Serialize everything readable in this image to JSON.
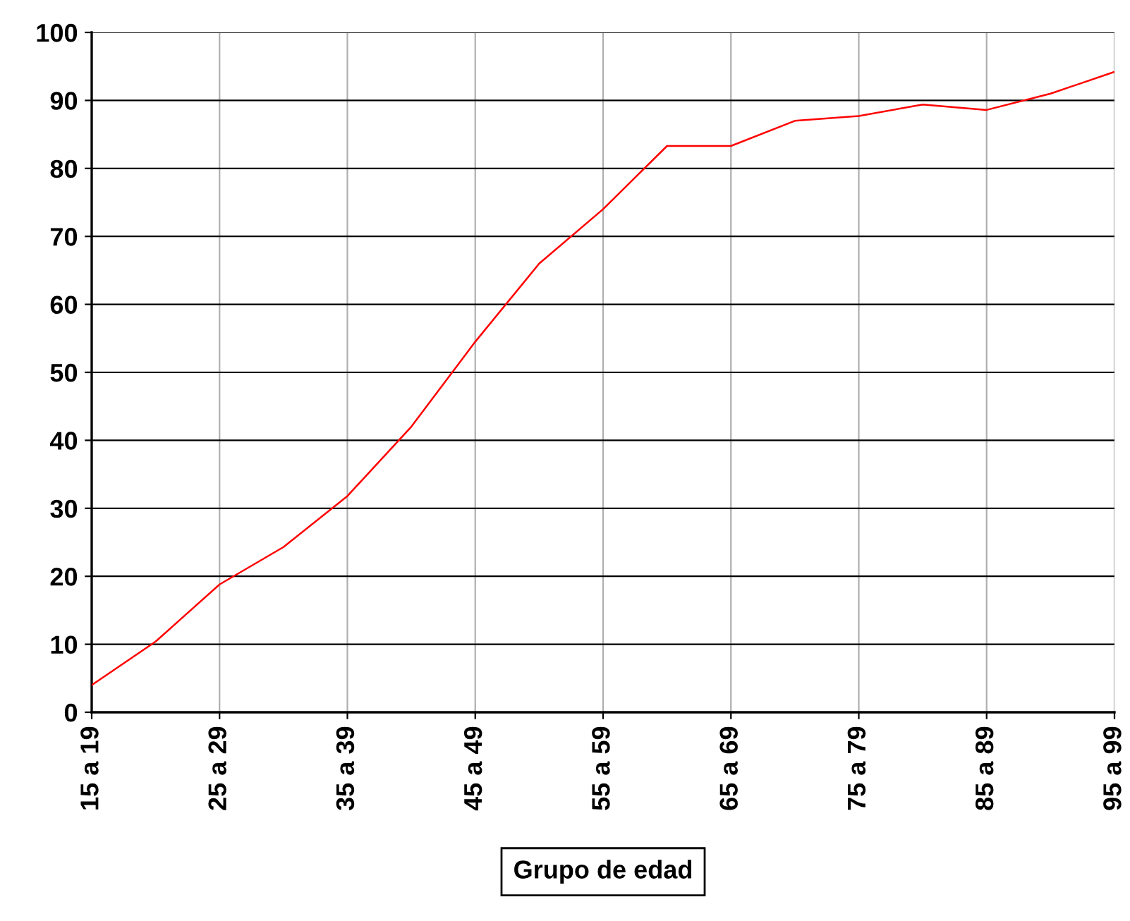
{
  "chart_data": {
    "type": "line",
    "xlabel": "Grupo de edad",
    "categories": [
      "15 a 19",
      null,
      "25 a 29",
      null,
      "35 a 39",
      null,
      "45 a 49",
      null,
      "55 a 59",
      null,
      "65 a 69",
      null,
      "75 a 79",
      null,
      "85 a 89",
      null,
      "95 a 99"
    ],
    "series": [
      {
        "color": "#ff0000",
        "values": [
          4,
          10.4,
          18.8,
          24.3,
          31.8,
          42,
          54.5,
          66,
          74,
          83.3,
          83.3,
          87,
          87.7,
          89.4,
          88.6,
          91,
          94.2
        ]
      }
    ],
    "ylim": [
      0,
      100
    ],
    "yticks": [
      0,
      10,
      20,
      30,
      40,
      50,
      60,
      70,
      80,
      90,
      100
    ],
    "grid": true,
    "legend": false,
    "marker": "none",
    "line_style": "solid"
  }
}
